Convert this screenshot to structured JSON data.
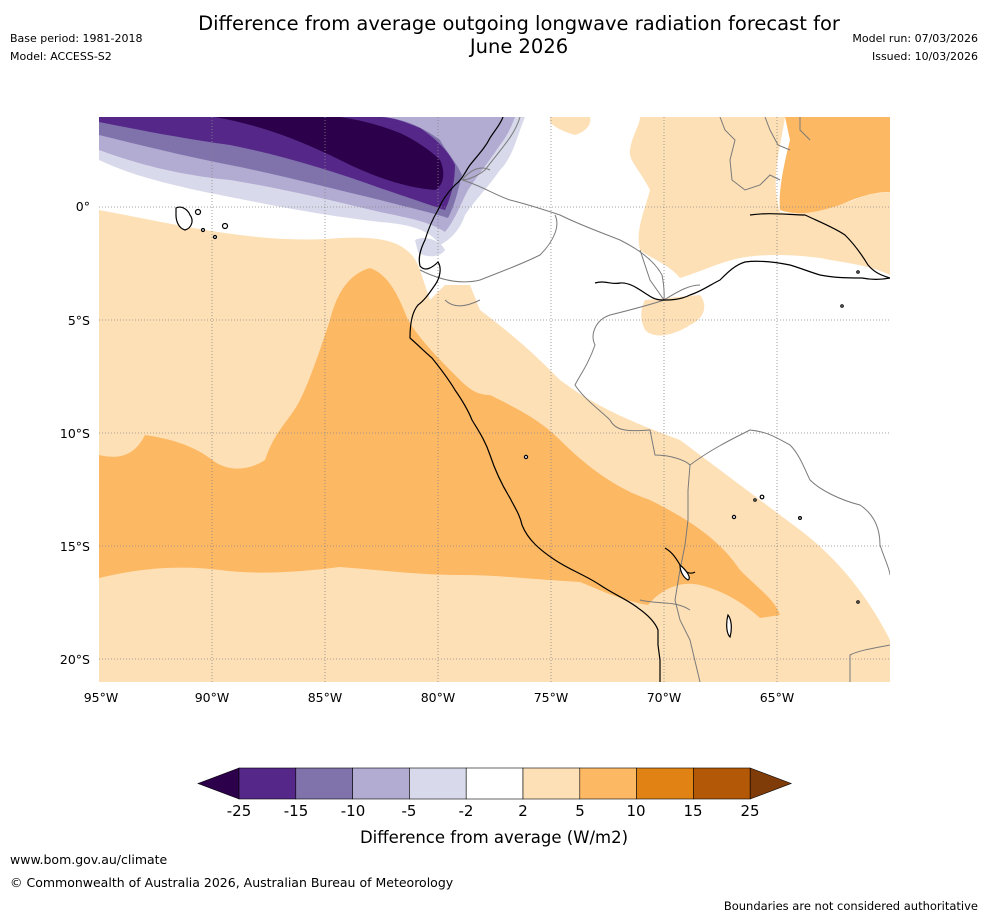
{
  "header": {
    "title_line1": "Difference from average outgoing longwave radiation forecast for",
    "title_line2": "June 2026",
    "base_period": "Base period: 1981-2018",
    "model": "Model: ACCESS-S2",
    "model_run": "Model run: 07/03/2026",
    "issued": "Issued: 10/03/2026"
  },
  "map": {
    "latitude_labels": [
      "0°",
      "5°S",
      "10°S",
      "15°S",
      "20°S"
    ],
    "longitude_labels": [
      "95°W",
      "90°W",
      "85°W",
      "80°W",
      "75°W",
      "70°W",
      "65°W"
    ]
  },
  "colorbar": {
    "title": "Difference from average (W/m2)",
    "tick_labels": [
      "-25",
      "-15",
      "-10",
      "-5",
      "-2",
      "2",
      "5",
      "10",
      "15",
      "25"
    ],
    "colors": {
      "under": "#2d004b",
      "bins": [
        "#542788",
        "#8073ac",
        "#b2abd2",
        "#d8daeb",
        "#ffffff",
        "#fee0b6",
        "#fdb863",
        "#e08214",
        "#b35806"
      ],
      "over": "#7f3b08"
    }
  },
  "footer": {
    "url": "www.bom.gov.au/climate",
    "copyright": "© Commonwealth of Australia 2026, Australian Bureau of Meteorology",
    "disclaimer": "Boundaries are not considered authoritative"
  }
}
